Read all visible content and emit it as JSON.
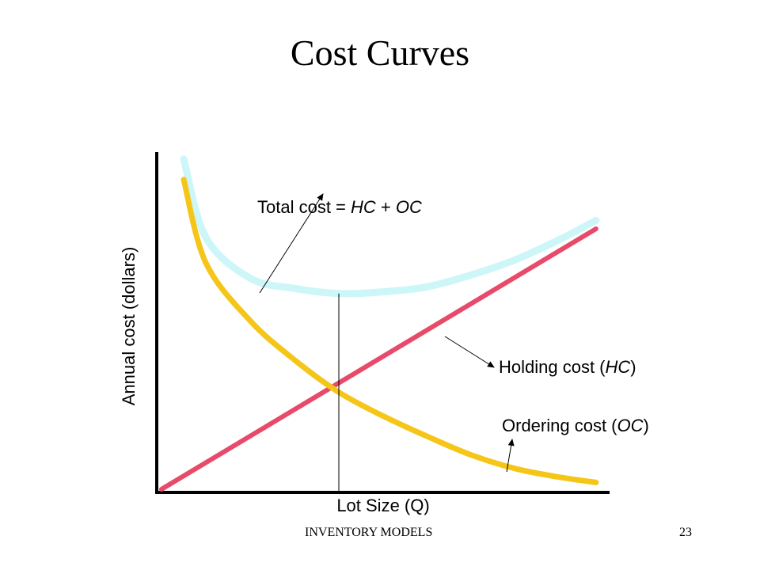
{
  "slide": {
    "title": "Cost Curves",
    "footer_left": "INVENTORY MODELS",
    "page_number": "23"
  },
  "chart_data": {
    "type": "line",
    "title": "",
    "xlabel": "Lot Size (Q)",
    "ylabel": "Annual cost (dollars)",
    "grid": false,
    "series": [
      {
        "name": "Total cost = HC + OC",
        "color": "#ccf6f8",
        "points": [
          [
            0.5,
            1.94
          ],
          [
            1,
            1.48
          ],
          [
            2,
            1.24
          ],
          [
            3,
            1.18
          ],
          [
            4,
            1.15
          ],
          [
            5,
            1.16
          ],
          [
            6,
            1.19
          ],
          [
            7,
            1.26
          ],
          [
            8,
            1.35
          ],
          [
            9,
            1.47
          ],
          [
            9.8,
            1.58
          ]
        ]
      },
      {
        "name": "Holding cost (HC)",
        "color": "#e84a6a",
        "points": [
          [
            0,
            0
          ],
          [
            9.8,
            1.53
          ]
        ]
      },
      {
        "name": "Ordering cost (OC)",
        "color": "#f5c518",
        "points": [
          [
            0.5,
            1.82
          ],
          [
            1,
            1.33
          ],
          [
            2,
            0.99
          ],
          [
            3,
            0.76
          ],
          [
            4,
            0.57
          ],
          [
            5,
            0.43
          ],
          [
            6,
            0.31
          ],
          [
            7,
            0.2
          ],
          [
            8,
            0.12
          ],
          [
            9,
            0.07
          ],
          [
            9.8,
            0.04
          ]
        ]
      }
    ],
    "annotations": [
      {
        "text_parts": [
          "Total cost = ",
          "HC",
          " + ",
          "OC"
        ],
        "target": "Total cost"
      },
      {
        "text_parts": [
          "Holding cost (",
          "HC",
          ")"
        ],
        "target": "Holding cost"
      },
      {
        "text_parts": [
          "Ordering cost (",
          "OC",
          ")"
        ],
        "target": "Ordering cost"
      }
    ],
    "optimal_q": 4,
    "xlim": [
      0,
      10
    ],
    "ylim": [
      0,
      2
    ]
  }
}
